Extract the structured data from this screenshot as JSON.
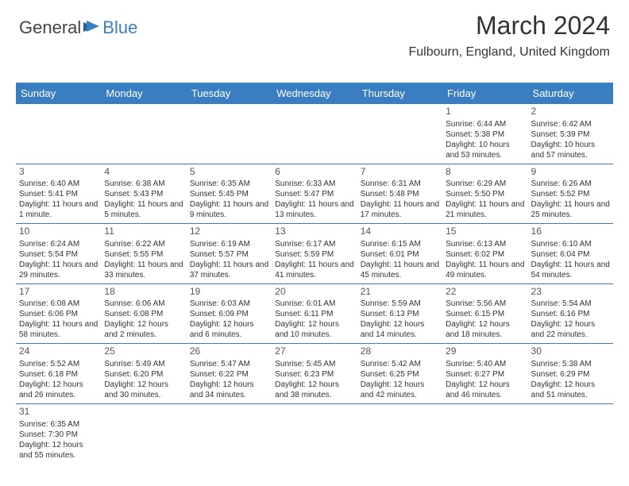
{
  "logo": {
    "part1": "General",
    "part2": "Blue"
  },
  "header": {
    "month_title": "March 2024",
    "location": "Fulbourn, England, United Kingdom"
  },
  "colors": {
    "header_bg": "#3a7ec1",
    "header_text": "#ffffff",
    "row_border": "#3a7ec1",
    "text": "#333333"
  },
  "day_labels": [
    "Sunday",
    "Monday",
    "Tuesday",
    "Wednesday",
    "Thursday",
    "Friday",
    "Saturday"
  ],
  "weeks": [
    [
      null,
      null,
      null,
      null,
      null,
      {
        "day": "1",
        "sunrise": "Sunrise: 6:44 AM",
        "sunset": "Sunset: 5:38 PM",
        "daylight": "Daylight: 10 hours and 53 minutes."
      },
      {
        "day": "2",
        "sunrise": "Sunrise: 6:42 AM",
        "sunset": "Sunset: 5:39 PM",
        "daylight": "Daylight: 10 hours and 57 minutes."
      }
    ],
    [
      {
        "day": "3",
        "sunrise": "Sunrise: 6:40 AM",
        "sunset": "Sunset: 5:41 PM",
        "daylight": "Daylight: 11 hours and 1 minute."
      },
      {
        "day": "4",
        "sunrise": "Sunrise: 6:38 AM",
        "sunset": "Sunset: 5:43 PM",
        "daylight": "Daylight: 11 hours and 5 minutes."
      },
      {
        "day": "5",
        "sunrise": "Sunrise: 6:35 AM",
        "sunset": "Sunset: 5:45 PM",
        "daylight": "Daylight: 11 hours and 9 minutes."
      },
      {
        "day": "6",
        "sunrise": "Sunrise: 6:33 AM",
        "sunset": "Sunset: 5:47 PM",
        "daylight": "Daylight: 11 hours and 13 minutes."
      },
      {
        "day": "7",
        "sunrise": "Sunrise: 6:31 AM",
        "sunset": "Sunset: 5:48 PM",
        "daylight": "Daylight: 11 hours and 17 minutes."
      },
      {
        "day": "8",
        "sunrise": "Sunrise: 6:29 AM",
        "sunset": "Sunset: 5:50 PM",
        "daylight": "Daylight: 11 hours and 21 minutes."
      },
      {
        "day": "9",
        "sunrise": "Sunrise: 6:26 AM",
        "sunset": "Sunset: 5:52 PM",
        "daylight": "Daylight: 11 hours and 25 minutes."
      }
    ],
    [
      {
        "day": "10",
        "sunrise": "Sunrise: 6:24 AM",
        "sunset": "Sunset: 5:54 PM",
        "daylight": "Daylight: 11 hours and 29 minutes."
      },
      {
        "day": "11",
        "sunrise": "Sunrise: 6:22 AM",
        "sunset": "Sunset: 5:55 PM",
        "daylight": "Daylight: 11 hours and 33 minutes."
      },
      {
        "day": "12",
        "sunrise": "Sunrise: 6:19 AM",
        "sunset": "Sunset: 5:57 PM",
        "daylight": "Daylight: 11 hours and 37 minutes."
      },
      {
        "day": "13",
        "sunrise": "Sunrise: 6:17 AM",
        "sunset": "Sunset: 5:59 PM",
        "daylight": "Daylight: 11 hours and 41 minutes."
      },
      {
        "day": "14",
        "sunrise": "Sunrise: 6:15 AM",
        "sunset": "Sunset: 6:01 PM",
        "daylight": "Daylight: 11 hours and 45 minutes."
      },
      {
        "day": "15",
        "sunrise": "Sunrise: 6:13 AM",
        "sunset": "Sunset: 6:02 PM",
        "daylight": "Daylight: 11 hours and 49 minutes."
      },
      {
        "day": "16",
        "sunrise": "Sunrise: 6:10 AM",
        "sunset": "Sunset: 6:04 PM",
        "daylight": "Daylight: 11 hours and 54 minutes."
      }
    ],
    [
      {
        "day": "17",
        "sunrise": "Sunrise: 6:08 AM",
        "sunset": "Sunset: 6:06 PM",
        "daylight": "Daylight: 11 hours and 58 minutes."
      },
      {
        "day": "18",
        "sunrise": "Sunrise: 6:06 AM",
        "sunset": "Sunset: 6:08 PM",
        "daylight": "Daylight: 12 hours and 2 minutes."
      },
      {
        "day": "19",
        "sunrise": "Sunrise: 6:03 AM",
        "sunset": "Sunset: 6:09 PM",
        "daylight": "Daylight: 12 hours and 6 minutes."
      },
      {
        "day": "20",
        "sunrise": "Sunrise: 6:01 AM",
        "sunset": "Sunset: 6:11 PM",
        "daylight": "Daylight: 12 hours and 10 minutes."
      },
      {
        "day": "21",
        "sunrise": "Sunrise: 5:59 AM",
        "sunset": "Sunset: 6:13 PM",
        "daylight": "Daylight: 12 hours and 14 minutes."
      },
      {
        "day": "22",
        "sunrise": "Sunrise: 5:56 AM",
        "sunset": "Sunset: 6:15 PM",
        "daylight": "Daylight: 12 hours and 18 minutes."
      },
      {
        "day": "23",
        "sunrise": "Sunrise: 5:54 AM",
        "sunset": "Sunset: 6:16 PM",
        "daylight": "Daylight: 12 hours and 22 minutes."
      }
    ],
    [
      {
        "day": "24",
        "sunrise": "Sunrise: 5:52 AM",
        "sunset": "Sunset: 6:18 PM",
        "daylight": "Daylight: 12 hours and 26 minutes."
      },
      {
        "day": "25",
        "sunrise": "Sunrise: 5:49 AM",
        "sunset": "Sunset: 6:20 PM",
        "daylight": "Daylight: 12 hours and 30 minutes."
      },
      {
        "day": "26",
        "sunrise": "Sunrise: 5:47 AM",
        "sunset": "Sunset: 6:22 PM",
        "daylight": "Daylight: 12 hours and 34 minutes."
      },
      {
        "day": "27",
        "sunrise": "Sunrise: 5:45 AM",
        "sunset": "Sunset: 6:23 PM",
        "daylight": "Daylight: 12 hours and 38 minutes."
      },
      {
        "day": "28",
        "sunrise": "Sunrise: 5:42 AM",
        "sunset": "Sunset: 6:25 PM",
        "daylight": "Daylight: 12 hours and 42 minutes."
      },
      {
        "day": "29",
        "sunrise": "Sunrise: 5:40 AM",
        "sunset": "Sunset: 6:27 PM",
        "daylight": "Daylight: 12 hours and 46 minutes."
      },
      {
        "day": "30",
        "sunrise": "Sunrise: 5:38 AM",
        "sunset": "Sunset: 6:29 PM",
        "daylight": "Daylight: 12 hours and 51 minutes."
      }
    ],
    [
      {
        "day": "31",
        "sunrise": "Sunrise: 6:35 AM",
        "sunset": "Sunset: 7:30 PM",
        "daylight": "Daylight: 12 hours and 55 minutes."
      },
      null,
      null,
      null,
      null,
      null,
      null
    ]
  ]
}
